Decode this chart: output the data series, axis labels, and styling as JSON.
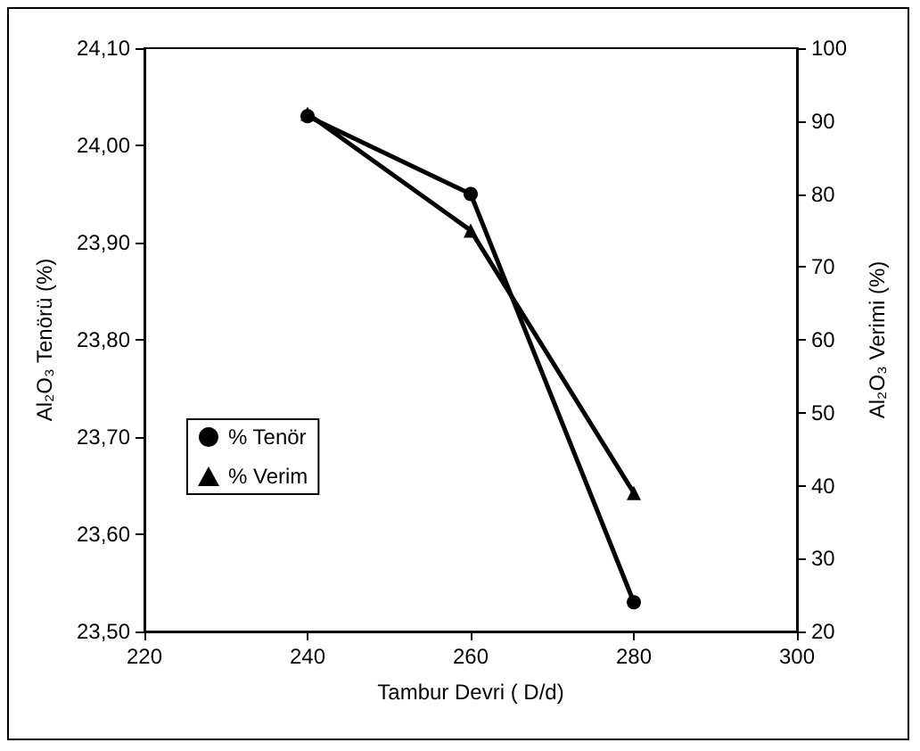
{
  "chart_data": {
    "type": "line",
    "xlabel": "Tambur Devri ( D/d)",
    "ylabel": "Al₂O₃ Tenörü (%)",
    "y2label": "Al₂O₃ Verimi (%)",
    "x": [
      240,
      260,
      280
    ],
    "series": [
      {
        "name": "% Tenör",
        "color": "#000000",
        "marker": "circle",
        "values": [
          24.03,
          23.95,
          23.53
        ]
      },
      {
        "name": "% Verim",
        "color": "#000000",
        "marker": "triangle",
        "axis": "y2",
        "values": [
          91,
          75,
          39
        ]
      }
    ],
    "xlim": [
      220,
      300
    ],
    "xticks": [
      220,
      240,
      260,
      280,
      300
    ],
    "ylim": [
      23.5,
      24.1
    ],
    "yticks": [
      {
        "value": 23.5,
        "label": "23,50"
      },
      {
        "value": 23.6,
        "label": "23,60"
      },
      {
        "value": 23.7,
        "label": "23,70"
      },
      {
        "value": 23.8,
        "label": "23,80"
      },
      {
        "value": 23.9,
        "label": "23,90"
      },
      {
        "value": 24.0,
        "label": "24,00"
      },
      {
        "value": 24.1,
        "label": "24,10"
      }
    ],
    "y2lim": [
      20,
      100
    ],
    "y2ticks": [
      20,
      30,
      40,
      50,
      60,
      70,
      80,
      90,
      100
    ],
    "grid": false,
    "legend": "left"
  }
}
